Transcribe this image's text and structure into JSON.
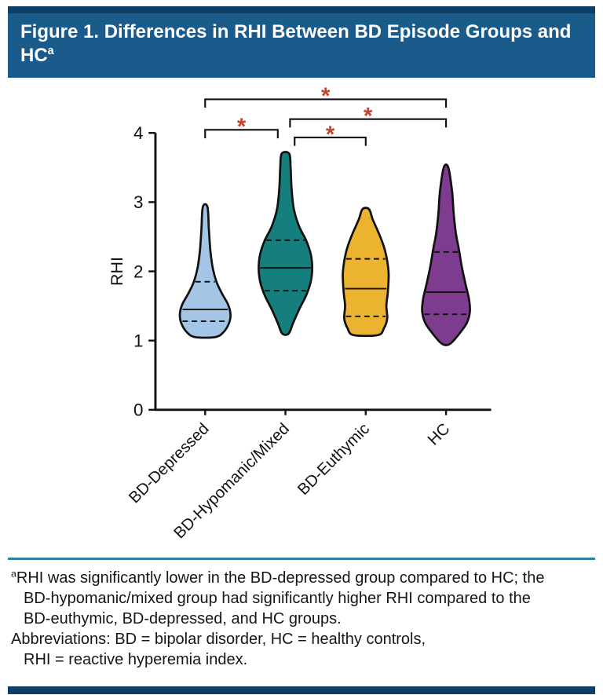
{
  "header": {
    "title": "Figure 1. Differences in RHI Between BD Episode Groups and HC",
    "title_sup": "a"
  },
  "chart_data": {
    "type": "violin",
    "title": "",
    "ylabel": "RHI",
    "xlabel": "",
    "ylim": [
      0,
      4
    ],
    "yticks": [
      0,
      1,
      2,
      3,
      4
    ],
    "grid": false,
    "legend": "none",
    "categories": [
      "BD-Depressed",
      "BD-Hypomanic/Mixed",
      "BD-Euthymic",
      "HC"
    ],
    "groups": [
      {
        "label": "BD-Depressed",
        "color": "#A4C5E5",
        "min": 1.05,
        "max": 2.93,
        "median": 1.45,
        "q1": 1.28,
        "q3": 1.85,
        "profile": [
          [
            1.05,
            0.34
          ],
          [
            1.12,
            0.63
          ],
          [
            1.25,
            0.82
          ],
          [
            1.38,
            0.87
          ],
          [
            1.52,
            0.79
          ],
          [
            1.68,
            0.58
          ],
          [
            1.85,
            0.39
          ],
          [
            2.05,
            0.26
          ],
          [
            2.3,
            0.18
          ],
          [
            2.6,
            0.13
          ],
          [
            2.93,
            0.08
          ]
        ]
      },
      {
        "label": "BD-Hypomanic/Mixed",
        "color": "#147F7C",
        "min": 1.1,
        "max": 3.7,
        "median": 2.05,
        "q1": 1.72,
        "q3": 2.45,
        "profile": [
          [
            1.1,
            0.11
          ],
          [
            1.25,
            0.26
          ],
          [
            1.45,
            0.47
          ],
          [
            1.65,
            0.71
          ],
          [
            1.85,
            0.87
          ],
          [
            2.05,
            0.92
          ],
          [
            2.25,
            0.87
          ],
          [
            2.45,
            0.71
          ],
          [
            2.65,
            0.47
          ],
          [
            2.9,
            0.29
          ],
          [
            3.2,
            0.21
          ],
          [
            3.5,
            0.18
          ],
          [
            3.7,
            0.13
          ]
        ]
      },
      {
        "label": "BD-Euthymic",
        "color": "#EBB32F",
        "min": 1.08,
        "max": 2.9,
        "median": 1.75,
        "q1": 1.35,
        "q3": 2.18,
        "profile": [
          [
            1.08,
            0.42
          ],
          [
            1.18,
            0.63
          ],
          [
            1.32,
            0.74
          ],
          [
            1.5,
            0.71
          ],
          [
            1.7,
            0.76
          ],
          [
            1.95,
            0.79
          ],
          [
            2.15,
            0.74
          ],
          [
            2.35,
            0.63
          ],
          [
            2.55,
            0.45
          ],
          [
            2.75,
            0.24
          ],
          [
            2.9,
            0.11
          ]
        ]
      },
      {
        "label": "HC",
        "color": "#7D3C8D",
        "min": 0.95,
        "max": 3.5,
        "median": 1.7,
        "q1": 1.38,
        "q3": 2.28,
        "profile": [
          [
            0.95,
            0.13
          ],
          [
            1.08,
            0.42
          ],
          [
            1.25,
            0.71
          ],
          [
            1.42,
            0.82
          ],
          [
            1.6,
            0.79
          ],
          [
            1.8,
            0.68
          ],
          [
            2.05,
            0.55
          ],
          [
            2.3,
            0.45
          ],
          [
            2.55,
            0.34
          ],
          [
            2.85,
            0.26
          ],
          [
            3.15,
            0.21
          ],
          [
            3.5,
            0.08
          ]
        ]
      }
    ],
    "significance_brackets": [
      {
        "groups": [
          0,
          3
        ],
        "row": 0,
        "label": "*"
      },
      {
        "groups": [
          1,
          3
        ],
        "row": 1,
        "label": "*",
        "x1_offset": 6
      },
      {
        "groups": [
          0,
          1
        ],
        "row": 2,
        "label": "*",
        "x2_offset": -10
      },
      {
        "groups": [
          1,
          2
        ],
        "row": 3,
        "label": "*",
        "x1_offset": 12
      }
    ]
  },
  "footnote": {
    "note_sup": "a",
    "note_text": "RHI was significantly lower in the BD-depressed group compared to HC; the BD-hypomanic/mixed group had significantly higher RHI compared to the BD-euthymic, BD-depressed, and HC groups.",
    "abbreviations_lines": [
      "Abbreviations: BD = bipolar disorder, HC = healthy controls,",
      "RHI = reactive hyperemia index."
    ]
  },
  "colors": {
    "header_bg": "#1A5B8C",
    "header_strip": "#0E3E66",
    "divider": "#2F7FA3",
    "bottom_bar": "#0E3E66",
    "asterisk": "#C2452C",
    "axis": "#111111"
  }
}
